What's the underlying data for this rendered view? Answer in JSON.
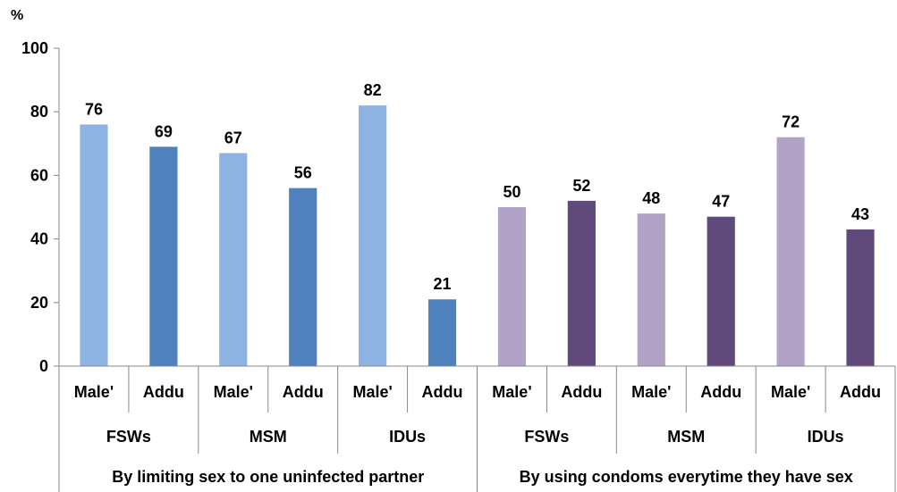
{
  "chart_data": {
    "type": "bar",
    "ylabel": "%",
    "ylim": [
      0,
      100
    ],
    "yticks": [
      0,
      20,
      40,
      60,
      80,
      100
    ],
    "grid": false,
    "categories": [
      {
        "location": "Male'",
        "group": "FSWs",
        "section": "By limiting sex to one uninfected partner",
        "value": 76,
        "color": "#8DB3E2"
      },
      {
        "location": "Addu",
        "group": "FSWs",
        "section": "By limiting sex to one uninfected partner",
        "value": 69,
        "color": "#4F81BD"
      },
      {
        "location": "Male'",
        "group": "MSM",
        "section": "By limiting sex to one uninfected partner",
        "value": 67,
        "color": "#8DB3E2"
      },
      {
        "location": "Addu",
        "group": "MSM",
        "section": "By limiting sex to one uninfected partner",
        "value": 56,
        "color": "#4F81BD"
      },
      {
        "location": "Male'",
        "group": "IDUs",
        "section": "By limiting sex to one uninfected partner",
        "value": 82,
        "color": "#8DB3E2"
      },
      {
        "location": "Addu",
        "group": "IDUs",
        "section": "By limiting sex to one uninfected partner",
        "value": 21,
        "color": "#4F81BD"
      },
      {
        "location": "Male'",
        "group": "FSWs",
        "section": "By using condoms everytime they have sex",
        "value": 50,
        "color": "#B3A2C7"
      },
      {
        "location": "Addu",
        "group": "FSWs",
        "section": "By using condoms everytime they have sex",
        "value": 52,
        "color": "#604A7B"
      },
      {
        "location": "Male'",
        "group": "MSM",
        "section": "By using condoms everytime they have sex",
        "value": 48,
        "color": "#B3A2C7"
      },
      {
        "location": "Addu",
        "group": "MSM",
        "section": "By using condoms everytime they have sex",
        "value": 47,
        "color": "#604A7B"
      },
      {
        "location": "Male'",
        "group": "IDUs",
        "section": "By using condoms everytime they have sex",
        "value": 72,
        "color": "#B3A2C7"
      },
      {
        "location": "Addu",
        "group": "IDUs",
        "section": "By using condoms everytime they have sex",
        "value": 43,
        "color": "#604A7B"
      }
    ],
    "groups": [
      "FSWs",
      "MSM",
      "IDUs",
      "FSWs",
      "MSM",
      "IDUs"
    ],
    "sections": [
      "By limiting sex to one uninfected partner",
      "By using condoms everytime they have sex"
    ]
  }
}
